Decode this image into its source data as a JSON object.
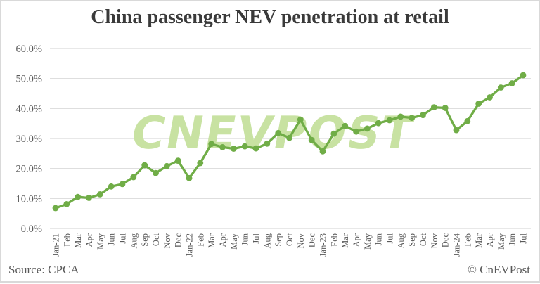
{
  "title": "China passenger NEV penetration at retail",
  "watermark": "CNEVPOST",
  "footer": {
    "source": "Source: CPCA",
    "copyright": "© CnEVPost"
  },
  "colors": {
    "line": "#70ad47",
    "marker": "#70ad47",
    "watermark": "#c8e2a2",
    "grid": "#d9d9d9",
    "axis_text": "#595959",
    "title_text": "#3a3a3a",
    "border": "#d9d9d9"
  },
  "chart_data": {
    "type": "line",
    "title": "China passenger NEV penetration at retail",
    "xlabel": "",
    "ylabel": "",
    "ylim": [
      0,
      60
    ],
    "ytick_step": 10,
    "yticks": [
      "0.0%",
      "10.0%",
      "20.0%",
      "30.0%",
      "40.0%",
      "50.0%",
      "60.0%"
    ],
    "grid": true,
    "legend": false,
    "categories": [
      "Jan-21",
      "Feb",
      "Mar",
      "Apr",
      "May",
      "Jun",
      "Jul",
      "Aug",
      "Sep",
      "Oct",
      "Nov",
      "Dec",
      "Jan-22",
      "Feb",
      "Mar",
      "Apr",
      "May",
      "Jun",
      "Jul",
      "Aug",
      "Sep",
      "Oct",
      "Nov",
      "Dec",
      "Jan-23",
      "Feb",
      "Mar",
      "Apr",
      "May",
      "Jun",
      "Jul",
      "Aug",
      "Sep",
      "Oct",
      "Nov",
      "Dec",
      "Jan-24",
      "Feb",
      "Mar",
      "Apr",
      "May",
      "Jun",
      "Jul"
    ],
    "values": [
      6.8,
      8.1,
      10.5,
      10.2,
      11.4,
      14.0,
      14.8,
      17.1,
      21.1,
      18.5,
      20.8,
      22.6,
      16.8,
      21.8,
      28.2,
      27.1,
      26.6,
      27.4,
      26.7,
      28.3,
      31.8,
      30.2,
      36.3,
      29.5,
      25.7,
      31.6,
      34.2,
      32.3,
      33.3,
      35.1,
      36.1,
      37.3,
      36.9,
      37.8,
      40.4,
      40.2,
      32.8,
      35.8,
      41.6,
      43.7,
      47.0,
      48.4,
      51.1
    ]
  }
}
